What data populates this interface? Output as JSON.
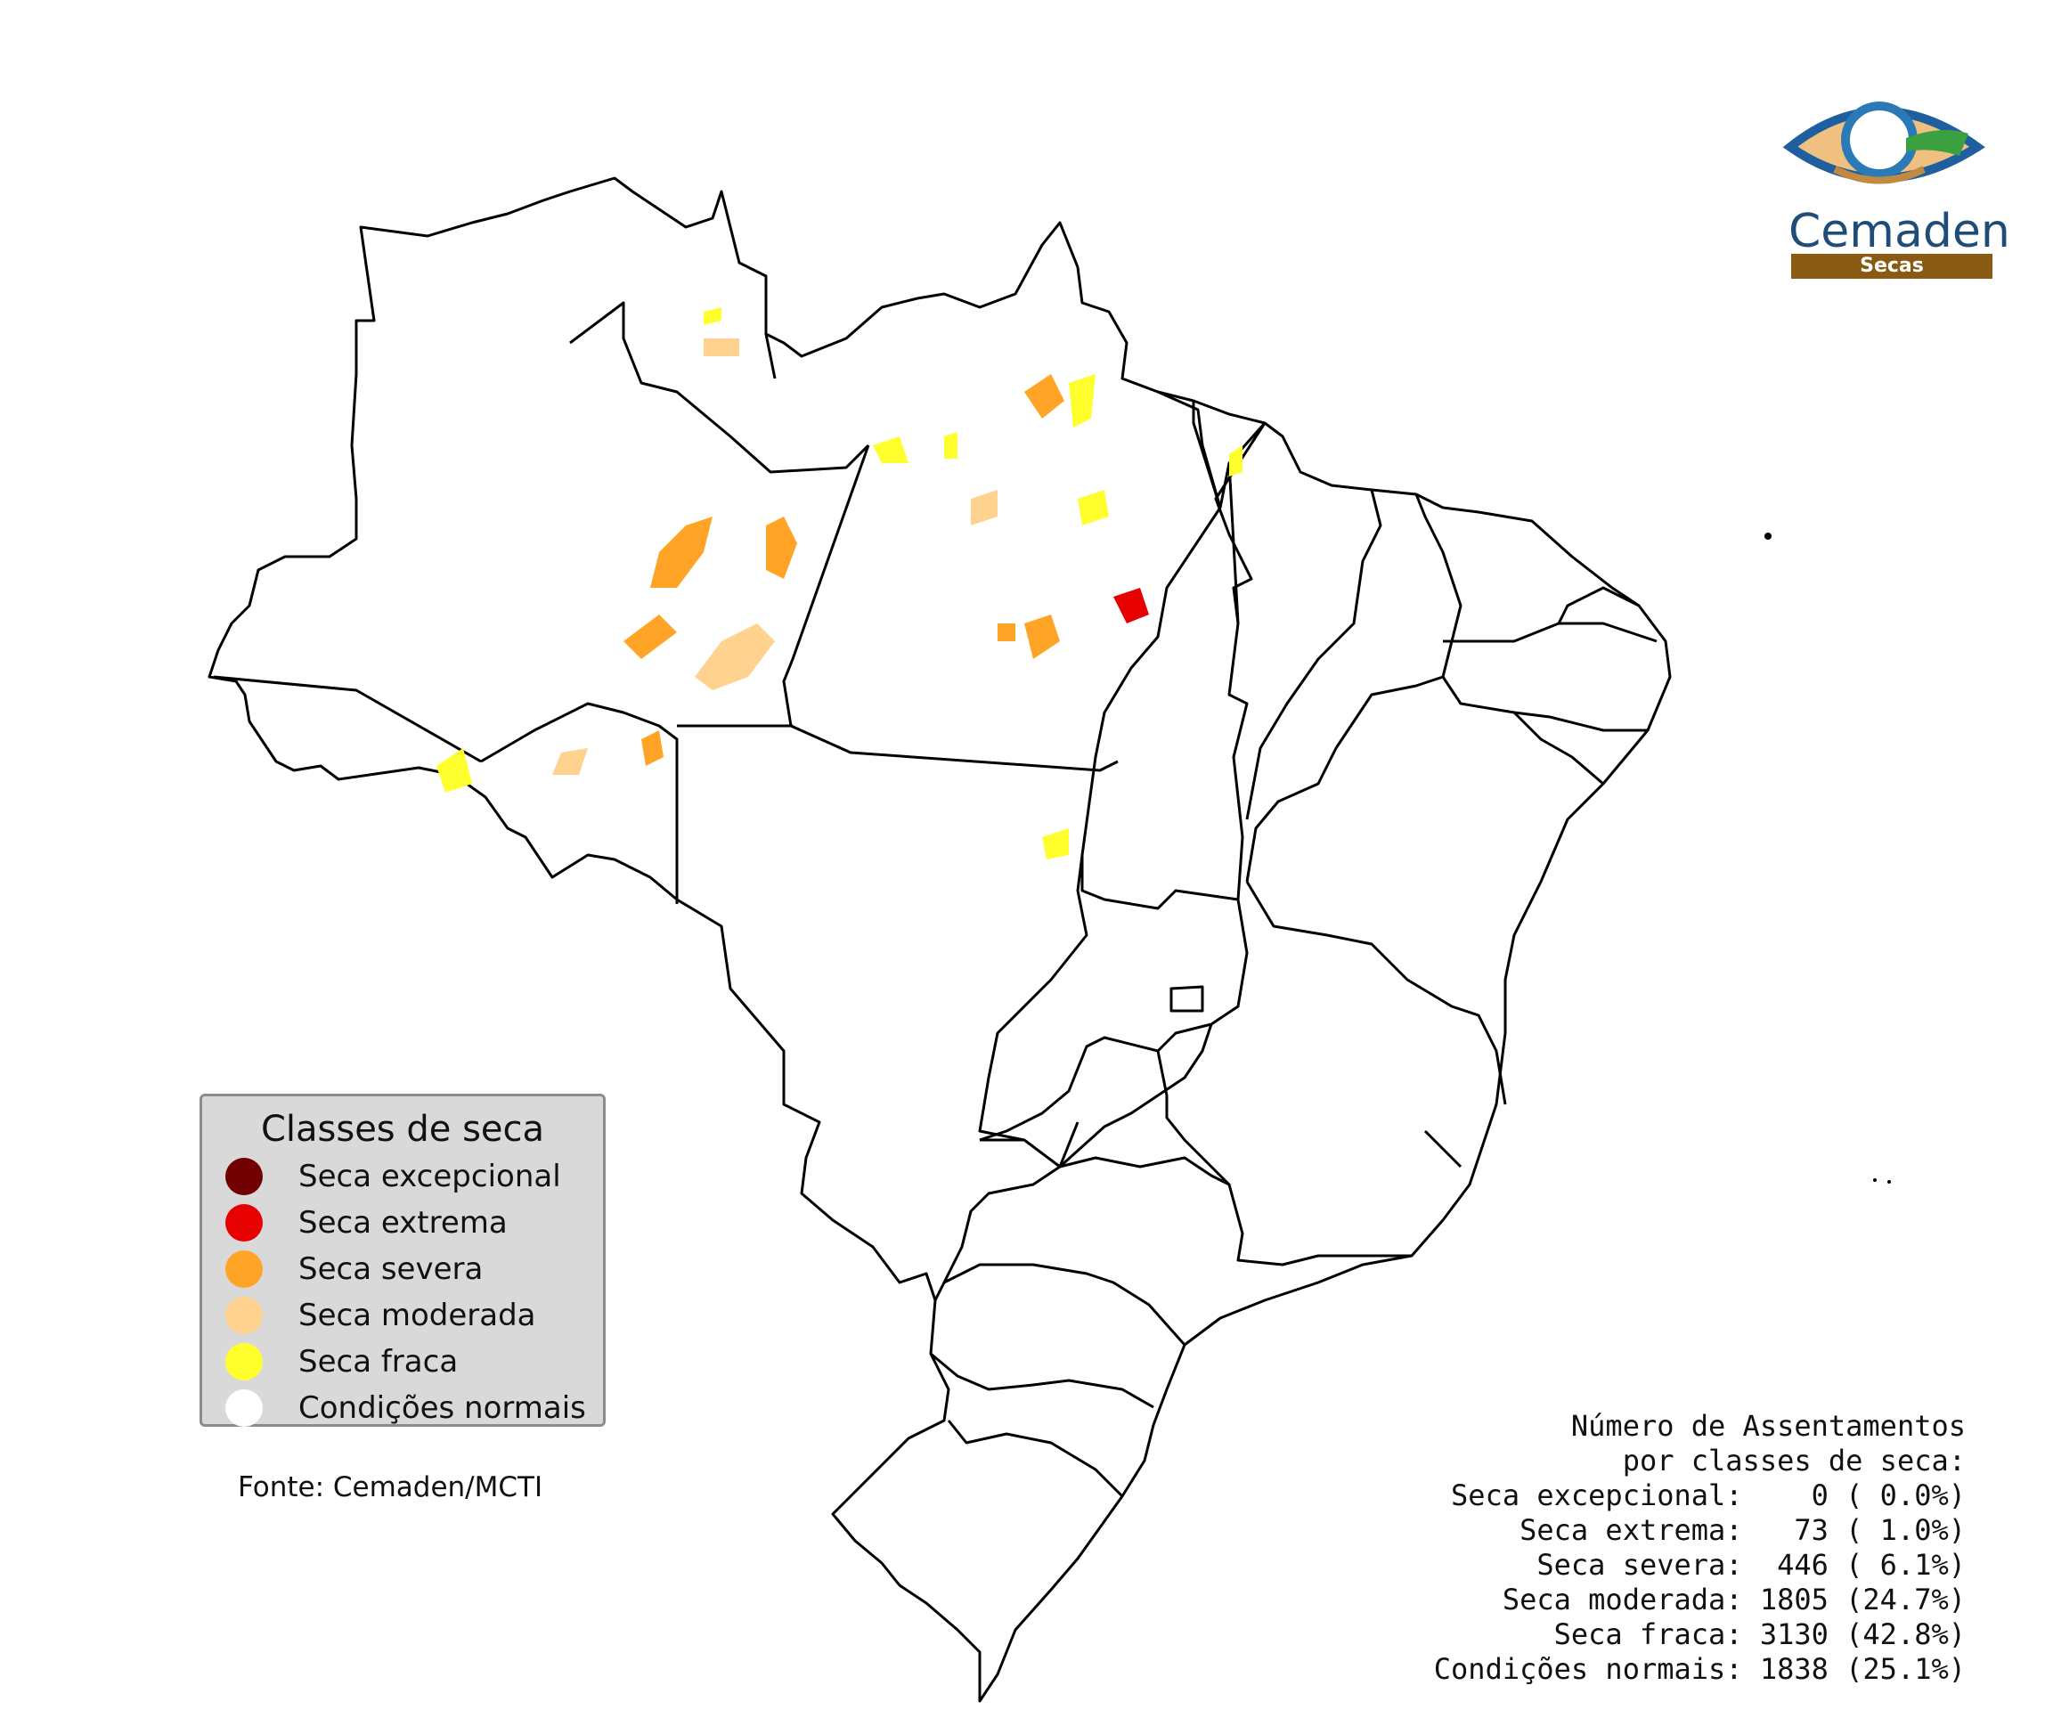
{
  "legend": {
    "title": "Classes de seca",
    "items": [
      {
        "label": "Seca excepcional",
        "color": "#730000"
      },
      {
        "label": "Seca extrema",
        "color": "#e60000"
      },
      {
        "label": "Seca severa",
        "color": "#ffa426"
      },
      {
        "label": "Seca moderada",
        "color": "#ffd38f"
      },
      {
        "label": "Seca fraca",
        "color": "#ffff2e"
      },
      {
        "label": "Condições normais",
        "color": "#ffffff"
      }
    ]
  },
  "source": "Fonte: Cemaden/MCTI",
  "stats": {
    "title_line1": "Número de Assentamentos",
    "title_line2": "por classes de seca:",
    "rows": [
      "Seca excepcional:    0 ( 0.0%)",
      "Seca extrema:   73 ( 1.0%)",
      "Seca severa:  446 ( 6.1%)",
      "Seca moderada: 1805 (24.7%)",
      "Seca fraca: 3130 (42.8%)",
      "Condições normais: 1838 (25.1%)"
    ]
  },
  "logo": {
    "name": "Cemaden",
    "subtitle": "Secas"
  }
}
